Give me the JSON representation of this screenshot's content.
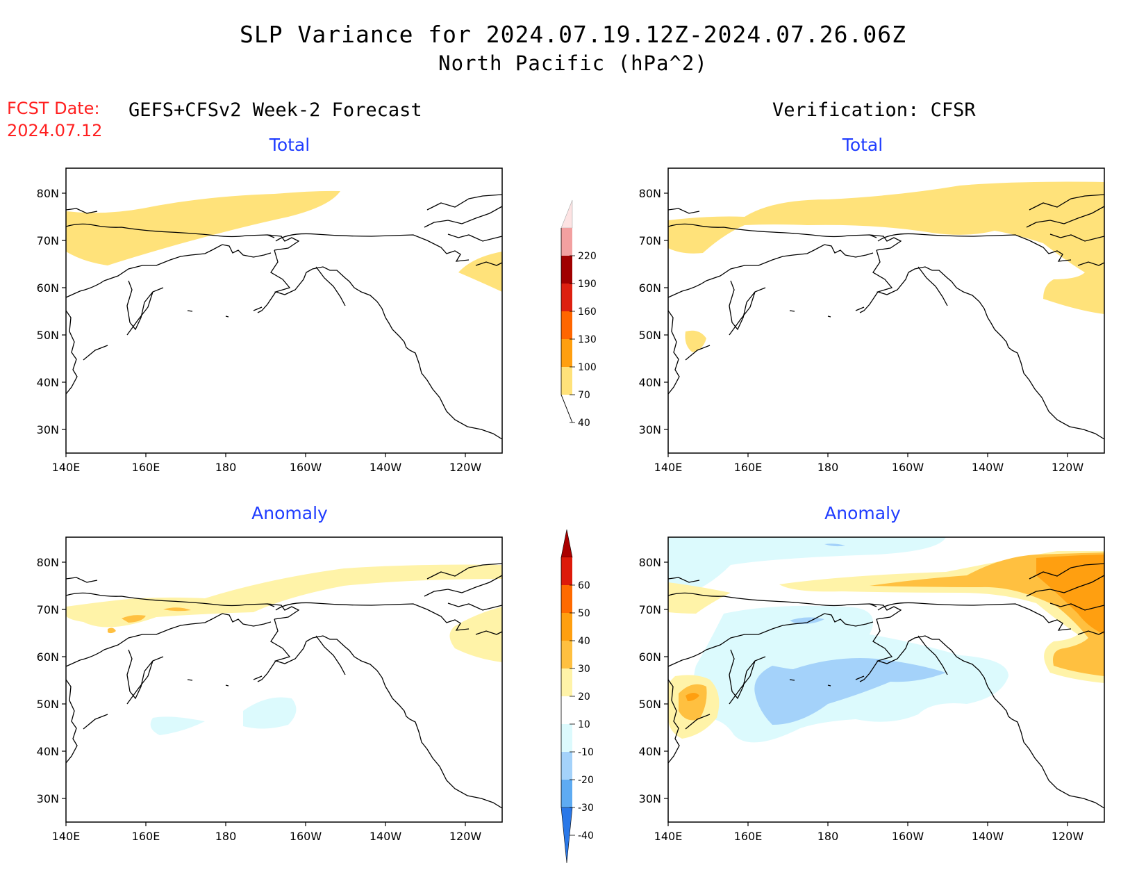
{
  "title_line1": "SLP Variance for 2024.07.19.12Z-2024.07.26.06Z",
  "title_line2": "North Pacific (hPa^2)",
  "fcst_label": "FCST Date:",
  "fcst_date": "2024.07.12",
  "left_header": "GEFS+CFSv2 Week-2 Forecast",
  "right_header": "Verification: CFSR",
  "panels": [
    {
      "title": "Total"
    },
    {
      "title": "Total"
    },
    {
      "title": "Anomaly"
    },
    {
      "title": "Anomaly"
    }
  ],
  "map": {
    "lat_labels": [
      "80N",
      "70N",
      "60N",
      "50N",
      "40N",
      "30N"
    ],
    "lon_labels": [
      "140E",
      "160E",
      "180",
      "160W",
      "140W",
      "120W"
    ]
  },
  "colorbar_total": {
    "levels": [
      "220",
      "190",
      "160",
      "130",
      "100",
      "70",
      "40"
    ],
    "colors": [
      "#fde3e3",
      "#f2a0a0",
      "#a00000",
      "#dd2010",
      "#ff6600",
      "#ff9f10",
      "#ffe27a"
    ]
  },
  "colorbar_anomaly": {
    "levels": [
      "60",
      "50",
      "40",
      "30",
      "20",
      "10",
      "-10",
      "-20",
      "-30",
      "-40"
    ],
    "colors": [
      "#aa0000",
      "#dd1a0a",
      "#ff6a00",
      "#ff9f10",
      "#ffc040",
      "#fff3a8",
      "#ffffff",
      "#dcfafd",
      "#a4d2fa",
      "#5eabf2",
      "#2a78e8"
    ]
  }
}
